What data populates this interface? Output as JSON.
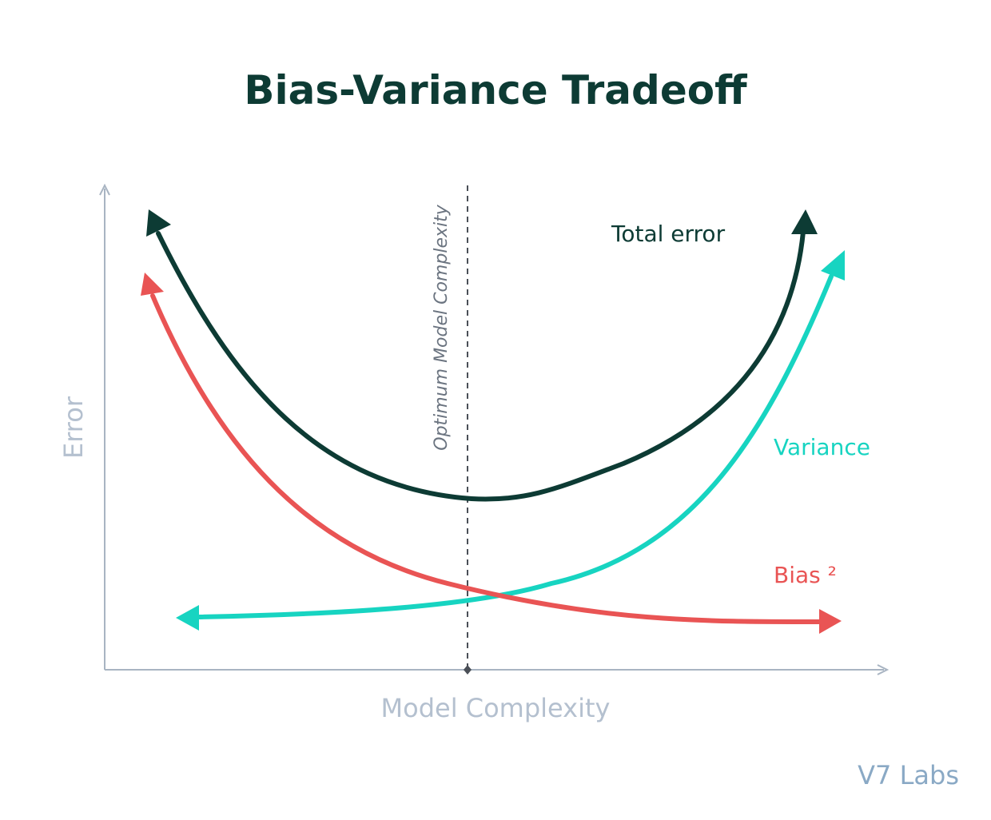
{
  "title": "Bias-Variance Tradeoff",
  "credit": "V7 Labs",
  "axes": {
    "x_label": "Model Complexity",
    "y_label": "Error"
  },
  "optimum_label": "Optimum Model Complexity",
  "curves": {
    "total_error": {
      "label": "Total error",
      "color": "#0d3b34"
    },
    "variance": {
      "label": "Variance",
      "color": "#17d4c1"
    },
    "bias": {
      "label": "Bias ²",
      "color": "#e95454"
    }
  },
  "colors": {
    "axis": "#a8b4c2",
    "optimum_line": "#4a4f57"
  }
}
